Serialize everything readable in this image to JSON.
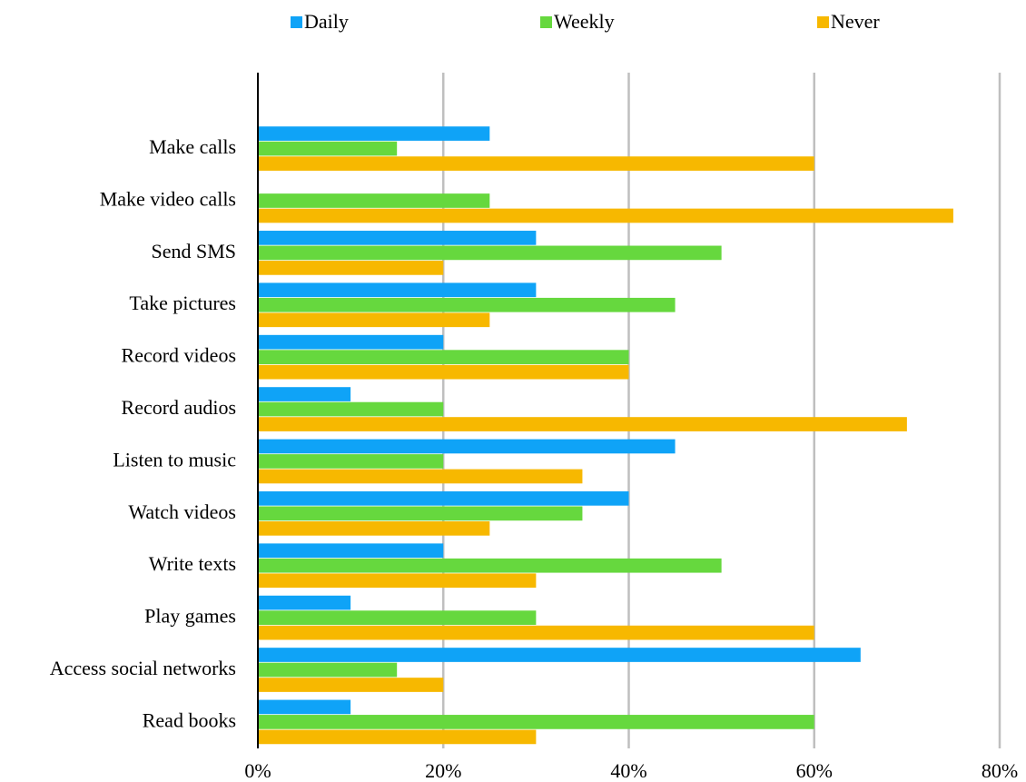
{
  "chart_data": {
    "type": "hbar",
    "categories": [
      "Make calls",
      "Make video calls",
      "Send SMS",
      "Take pictures",
      "Record videos",
      "Record audios",
      "Listen to music",
      "Watch videos",
      "Write texts",
      "Play games",
      "Access social networks",
      "Read books"
    ],
    "series": [
      {
        "name": "Daily",
        "color": "#0fa3f7",
        "values": [
          25,
          0,
          30,
          30,
          20,
          10,
          45,
          40,
          20,
          10,
          65,
          10
        ]
      },
      {
        "name": "Weekly",
        "color": "#66d83e",
        "values": [
          15,
          25,
          50,
          45,
          40,
          20,
          20,
          35,
          50,
          30,
          15,
          60
        ]
      },
      {
        "name": "Never",
        "color": "#f7b800",
        "values": [
          60,
          75,
          20,
          25,
          40,
          70,
          35,
          25,
          30,
          60,
          20,
          30
        ]
      }
    ],
    "xlim": [
      0,
      80
    ],
    "xticks": [
      {
        "value": 0,
        "label": "0%"
      },
      {
        "value": 20,
        "label": "20%"
      },
      {
        "value": 40,
        "label": "40%"
      },
      {
        "value": 60,
        "label": "60%"
      },
      {
        "value": 80,
        "label": "80%"
      }
    ],
    "grid": true,
    "legend": "top"
  }
}
